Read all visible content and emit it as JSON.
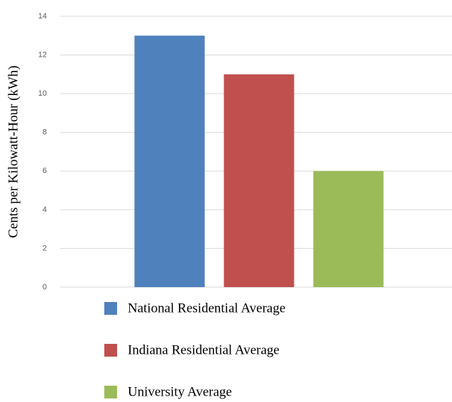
{
  "chart_data": {
    "type": "bar",
    "y_label": "Cents per Kilowatt-Hour (kWh)",
    "categories": [
      null
    ],
    "series": [
      {
        "name": "National Residential Average",
        "color": "#4f81bd",
        "values": [
          13
        ]
      },
      {
        "name": "Indiana Residential Average",
        "color": "#c0504d",
        "values": [
          11
        ]
      },
      {
        "name": "University Average",
        "color": "#9bbb59",
        "values": [
          6
        ]
      }
    ],
    "ylim": [
      0,
      14
    ],
    "yticks": [
      0,
      2,
      4,
      6,
      8,
      10,
      12,
      14
    ],
    "grid": true,
    "legend": "bottom"
  }
}
